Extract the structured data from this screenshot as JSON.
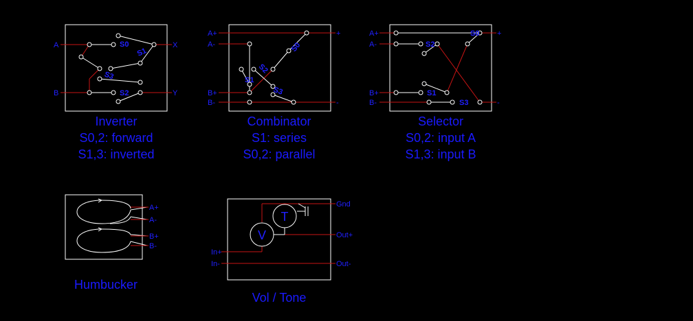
{
  "inverter": {
    "in_a": "A",
    "in_b": "B",
    "out_x": "X",
    "out_y": "Y",
    "s0": "S0",
    "s1": "S1",
    "s2": "S2",
    "s3": "S3",
    "caption": [
      "Inverter",
      "S0,2: forward",
      "S1,3: inverted"
    ]
  },
  "combinator": {
    "a_plus": "A+",
    "a_minus": "A-",
    "b_plus": "B+",
    "b_minus": "B-",
    "out_plus": "+",
    "out_minus": "-",
    "s0": "S0",
    "s1": "S1",
    "s2": "S2",
    "s3": "S3",
    "caption": [
      "Combinator",
      "S1: series",
      "S0,2: parallel"
    ]
  },
  "selector": {
    "a_plus": "A+",
    "a_minus": "A-",
    "b_plus": "B+",
    "b_minus": "B-",
    "out_plus": "+",
    "out_minus": "-",
    "s0": "S0",
    "s1": "S1",
    "s2": "S2",
    "s3": "S3",
    "caption": [
      "Selector",
      "S0,2: input A",
      "S1,3: input B"
    ]
  },
  "humbucker": {
    "a_plus": "A+",
    "a_minus": "A-",
    "b_plus": "B+",
    "b_minus": "B-",
    "caption": "Humbucker"
  },
  "voltone": {
    "gnd": "Gnd",
    "out_plus": "Out+",
    "out_minus": "Out-",
    "in_plus": "In+",
    "in_minus": "In-",
    "volume": "V",
    "tone": "T",
    "caption": "Vol / Tone"
  },
  "colors": {
    "wire": "#c81414",
    "label": "#2020ff",
    "line": "#ffffff",
    "background": "#000000"
  }
}
